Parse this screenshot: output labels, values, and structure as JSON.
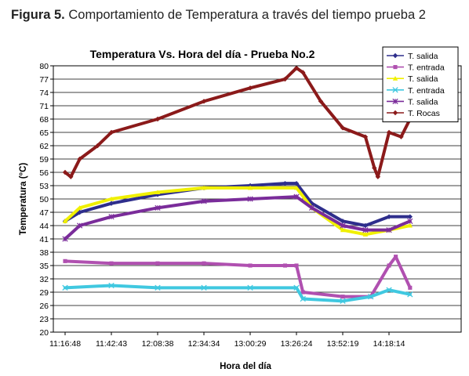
{
  "figure_caption": {
    "label": "Figura 5.",
    "text": "Comportamiento de Temperatura a través del tiempo prueba 2"
  },
  "chart_data": {
    "type": "line",
    "title": "Temperatura Vs. Hora del día - Prueba No.2",
    "xlabel": "Hora del día",
    "ylabel": "Temperatura (°C)",
    "ylim": [
      20,
      80
    ],
    "yticks": [
      20,
      23,
      26,
      29,
      32,
      35,
      38,
      41,
      44,
      47,
      50,
      53,
      56,
      59,
      62,
      65,
      68,
      71,
      74,
      77,
      80
    ],
    "xticks": [
      "11:16:48",
      "11:42:43",
      "12:08:38",
      "12:34:34",
      "13:00:29",
      "13:26:24",
      "13:52:19",
      "14:18:14"
    ],
    "grid": "horizontal",
    "legend_position": "top-right",
    "series": [
      {
        "name": "T. salida",
        "color": "#2E2E8C",
        "marker": "diamond",
        "x": [
          "11:16:48",
          "11:25:00",
          "11:42:43",
          "12:08:38",
          "12:34:34",
          "13:00:29",
          "13:20:00",
          "13:26:24",
          "13:35:00",
          "13:52:19",
          "14:05:00",
          "14:18:14",
          "14:30:00"
        ],
        "values": [
          45,
          47,
          49,
          51,
          52.5,
          53,
          53.5,
          53.5,
          49,
          45,
          44,
          46,
          46
        ]
      },
      {
        "name": "T. entrada",
        "color": "#B050B0",
        "marker": "square",
        "x": [
          "11:16:48",
          "11:42:43",
          "12:08:38",
          "12:34:34",
          "13:00:29",
          "13:20:00",
          "13:26:24",
          "13:30:00",
          "13:52:19",
          "14:08:00",
          "14:18:14",
          "14:22:00",
          "14:30:00"
        ],
        "values": [
          36,
          35.5,
          35.5,
          35.5,
          35,
          35,
          35,
          29,
          28,
          28,
          35,
          37,
          30
        ]
      },
      {
        "name": "T. salida",
        "color": "#F0F000",
        "marker": "triangle",
        "x": [
          "11:16:48",
          "11:25:00",
          "11:42:43",
          "12:08:38",
          "12:34:34",
          "13:00:29",
          "13:26:24",
          "13:35:00",
          "13:52:19",
          "14:05:00",
          "14:18:14",
          "14:30:00"
        ],
        "values": [
          45,
          48,
          50,
          51.5,
          52.5,
          52.5,
          52.5,
          48,
          43,
          42,
          43,
          44
        ]
      },
      {
        "name": "T. entrada",
        "color": "#40C8E0",
        "marker": "x",
        "x": [
          "11:16:48",
          "11:42:43",
          "12:08:38",
          "12:34:34",
          "13:00:29",
          "13:26:24",
          "13:30:00",
          "13:52:19",
          "14:08:00",
          "14:18:14",
          "14:30:00"
        ],
        "values": [
          30,
          30.5,
          30,
          30,
          30,
          30,
          27.5,
          27,
          28,
          29.5,
          28.5
        ]
      },
      {
        "name": "T. salida",
        "color": "#7A2C9A",
        "marker": "star",
        "x": [
          "11:16:48",
          "11:25:00",
          "11:42:43",
          "12:08:38",
          "12:34:34",
          "13:00:29",
          "13:26:24",
          "13:35:00",
          "13:52:19",
          "14:05:00",
          "14:18:14",
          "14:30:00"
        ],
        "values": [
          41,
          44,
          46,
          48,
          49.5,
          50,
          50.5,
          48,
          44,
          43,
          43,
          45
        ]
      },
      {
        "name": "T. Rocas",
        "color": "#8B1A1A",
        "marker": "diamond",
        "x": [
          "11:16:48",
          "11:20:00",
          "11:25:00",
          "11:35:00",
          "11:42:43",
          "12:08:38",
          "12:34:34",
          "13:00:29",
          "13:20:00",
          "13:26:24",
          "13:30:00",
          "13:40:00",
          "13:52:19",
          "14:05:00",
          "14:10:00",
          "14:12:00",
          "14:18:14",
          "14:25:00",
          "14:30:00"
        ],
        "values": [
          56,
          55,
          59,
          62,
          65,
          68,
          72,
          75,
          77,
          79.5,
          78.5,
          72,
          66,
          64,
          57,
          55,
          65,
          64,
          68
        ]
      }
    ]
  }
}
